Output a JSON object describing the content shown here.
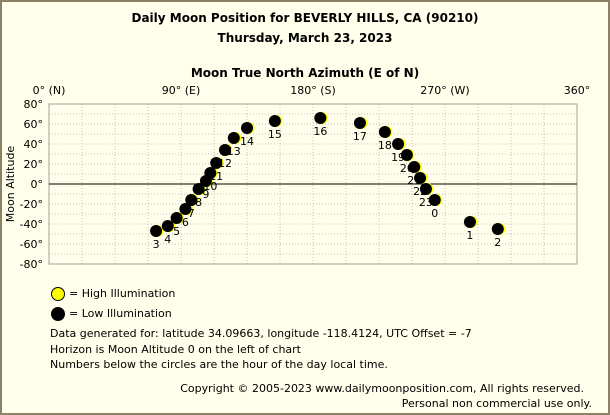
{
  "page": {
    "title_line1": "Daily Moon Position for BEVERLY HILLS, CA (90210)",
    "title_line2": "Thursday, March 23, 2023"
  },
  "legend": {
    "high_label": "= High Illumination",
    "low_label": "= Low Illumination",
    "high_color": "#ffff00",
    "low_color": "#000000"
  },
  "notes": {
    "line1": "Data generated for: latitude 34.09663, longitude -118.4124, UTC Offset = -7",
    "line2": "Horizon is Moon Altitude 0 on the left of chart",
    "line3": "Numbers below the circles are the hour of the day local time."
  },
  "footer": {
    "copyright": "Copyright © 2005-2023 www.dailymoonposition.com, All rights reserved.",
    "license": "Personal non commercial use only."
  },
  "chart_data": {
    "type": "scatter",
    "xlabel": "Moon True North Azimuth (E of N)",
    "ylabel": "Moon Altitude",
    "xlim": [
      0,
      360
    ],
    "ylim": [
      -80,
      80
    ],
    "x_ticks": [
      {
        "value": 0,
        "label": "0° (N)"
      },
      {
        "value": 90,
        "label": "90° (E)"
      },
      {
        "value": 180,
        "label": "180° (S)"
      },
      {
        "value": 270,
        "label": "270° (W)"
      },
      {
        "value": 360,
        "label": "360°"
      }
    ],
    "y_ticks": [
      {
        "value": 80,
        "label": "80°"
      },
      {
        "value": 60,
        "label": "60°"
      },
      {
        "value": 40,
        "label": "40°"
      },
      {
        "value": 20,
        "label": "20°"
      },
      {
        "value": 0,
        "label": "0°"
      },
      {
        "value": -20,
        "label": "-20°"
      },
      {
        "value": -40,
        "label": "-40°"
      },
      {
        "value": -60,
        "label": "-60°"
      },
      {
        "value": -80,
        "label": "-80°"
      }
    ],
    "grid": true,
    "horizon_altitude": 0,
    "colors": {
      "grid": "#c0c0c0",
      "horizon": "#000000",
      "moon": "#000000",
      "highlight": "#ffff00"
    },
    "series": [
      {
        "name": "Low Illumination",
        "points": [
          {
            "hour": "3",
            "azimuth": 73,
            "altitude": -47
          },
          {
            "hour": "4",
            "azimuth": 81,
            "altitude": -42
          },
          {
            "hour": "5",
            "azimuth": 87,
            "altitude": -34
          },
          {
            "hour": "6",
            "azimuth": 93,
            "altitude": -25
          },
          {
            "hour": "7",
            "azimuth": 97,
            "altitude": -16
          },
          {
            "hour": "8",
            "azimuth": 102,
            "altitude": -5
          },
          {
            "hour": "9",
            "azimuth": 107,
            "altitude": 3
          },
          {
            "hour": "10",
            "azimuth": 110,
            "altitude": 11
          },
          {
            "hour": "11",
            "azimuth": 114,
            "altitude": 21
          },
          {
            "hour": "12",
            "azimuth": 120,
            "altitude": 34
          },
          {
            "hour": "13",
            "azimuth": 126,
            "altitude": 46
          },
          {
            "hour": "14",
            "azimuth": 135,
            "altitude": 56
          },
          {
            "hour": "15",
            "azimuth": 154,
            "altitude": 63
          },
          {
            "hour": "16",
            "azimuth": 185,
            "altitude": 66
          },
          {
            "hour": "17",
            "azimuth": 212,
            "altitude": 61
          },
          {
            "hour": "18",
            "azimuth": 229,
            "altitude": 52
          },
          {
            "hour": "19",
            "azimuth": 238,
            "altitude": 40
          },
          {
            "hour": "20",
            "azimuth": 244,
            "altitude": 29
          },
          {
            "hour": "21",
            "azimuth": 249,
            "altitude": 17
          },
          {
            "hour": "22",
            "azimuth": 253,
            "altitude": 6
          },
          {
            "hour": "23",
            "azimuth": 257,
            "altitude": -5
          },
          {
            "hour": "0",
            "azimuth": 263,
            "altitude": -16
          },
          {
            "hour": "1",
            "azimuth": 287,
            "altitude": -38
          },
          {
            "hour": "2",
            "azimuth": 306,
            "altitude": -45
          }
        ]
      }
    ]
  }
}
